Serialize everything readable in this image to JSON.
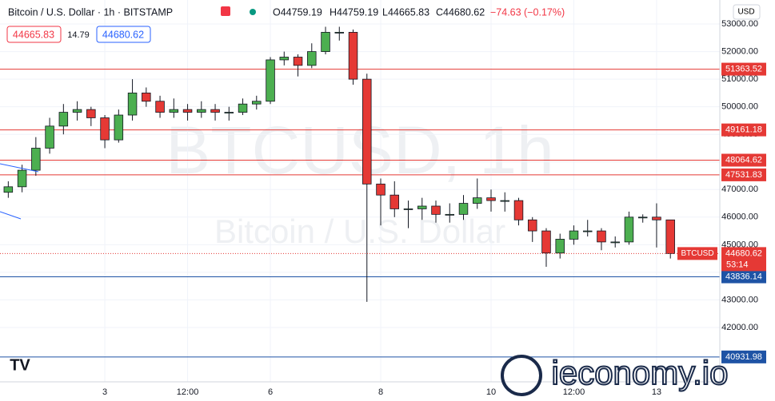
{
  "header": {
    "title": "Bitcoin / U.S. Dollar · 1h · BITSTAMP",
    "open": "O44759.19",
    "high": "H44759.19",
    "low": "L44665.83",
    "close": "C44680.62",
    "change": "−74.63 (−0.17%)",
    "bid": "44665.83",
    "spread": "14.79",
    "ask": "44680.62",
    "currency": "USD",
    "watermark_symbol": "BTCUSD, 1h",
    "watermark_name": "Bitcoin / U.S. Dollar",
    "brand": "ieconomy.io"
  },
  "chart_data": {
    "type": "candlestick",
    "up_color": "#4caf50",
    "down_color": "#e53935",
    "x": [
      -42,
      -36,
      -30,
      -24,
      -18,
      -12,
      -6,
      0,
      6,
      12,
      18,
      24,
      30,
      36,
      42,
      48,
      54,
      60,
      66,
      72,
      78,
      84,
      90,
      96,
      102,
      108,
      114,
      120,
      126,
      132,
      138,
      144,
      150,
      156,
      162,
      168,
      174,
      180,
      186,
      192,
      198,
      204,
      210,
      216,
      222,
      228,
      234,
      240,
      246
    ],
    "open": [
      46900,
      47100,
      47700,
      48500,
      49300,
      49800,
      49900,
      49600,
      48800,
      49700,
      50500,
      50200,
      49800,
      49900,
      49800,
      49900,
      49800,
      49800,
      50100,
      50200,
      51700,
      51800,
      51500,
      52000,
      52700,
      52700,
      51000,
      47200,
      46800,
      46300,
      46300,
      46400,
      46100,
      46100,
      46500,
      46700,
      46600,
      46600,
      45900,
      45500,
      44700,
      45200,
      45500,
      45500,
      45100,
      45100,
      46000,
      46000,
      45900
    ],
    "high": [
      47300,
      47900,
      48900,
      49600,
      50100,
      50200,
      50000,
      49700,
      49900,
      51000,
      50700,
      50400,
      50300,
      50100,
      50200,
      50100,
      50000,
      50300,
      50400,
      51800,
      52000,
      51900,
      52300,
      52900,
      52900,
      52800,
      51200,
      47400,
      47300,
      46600,
      46700,
      46600,
      46500,
      46800,
      47400,
      47000,
      46900,
      46700,
      46000,
      45600,
      45400,
      45700,
      45900,
      45600,
      45300,
      46200,
      46100,
      46500,
      45900
    ],
    "low": [
      46700,
      46900,
      47500,
      48300,
      49000,
      49500,
      49300,
      48500,
      48700,
      49500,
      50000,
      49600,
      49600,
      49500,
      49600,
      49500,
      49500,
      49700,
      49900,
      50100,
      51500,
      51100,
      51400,
      51900,
      52400,
      50800,
      42930,
      45700,
      46000,
      45600,
      45900,
      45800,
      45800,
      45900,
      46300,
      46200,
      46200,
      45700,
      45100,
      44200,
      44500,
      45000,
      45300,
      44800,
      44900,
      45000,
      45800,
      44900,
      44500
    ],
    "close": [
      47100,
      47700,
      48500,
      49300,
      49800,
      49900,
      49600,
      48800,
      49700,
      50500,
      50200,
      49800,
      49900,
      49800,
      49900,
      49800,
      49800,
      50100,
      50200,
      51700,
      51800,
      51500,
      52000,
      52700,
      52700,
      51000,
      47200,
      46800,
      46300,
      46300,
      46400,
      46100,
      46100,
      46500,
      46700,
      46600,
      46600,
      45900,
      45500,
      44700,
      45200,
      45500,
      45500,
      45100,
      45100,
      46000,
      46000,
      45900,
      44680
    ],
    "xlim": [
      -45.6,
      267.5
    ],
    "xticks": [
      {
        "value": 0,
        "label": "3"
      },
      {
        "value": 36,
        "label": "12:00"
      },
      {
        "value": 72,
        "label": "6"
      },
      {
        "value": 120,
        "label": "8"
      },
      {
        "value": 168,
        "label": "10"
      },
      {
        "value": 204,
        "label": "12:00"
      },
      {
        "value": 240,
        "label": "13"
      }
    ],
    "ylim": [
      40030,
      53870
    ],
    "yticks": [
      {
        "value": 42000,
        "label": "42000.00"
      },
      {
        "value": 43000,
        "label": "43000.00"
      },
      {
        "value": 44000,
        "label": "44000.00"
      },
      {
        "value": 45000,
        "label": "45000.00"
      },
      {
        "value": 46000,
        "label": "46000.00"
      },
      {
        "value": 47000,
        "label": "47000.00"
      },
      {
        "value": 48000,
        "label": "48000.00"
      },
      {
        "value": 49000,
        "label": "49000.00"
      },
      {
        "value": 50000,
        "label": "50000.00"
      },
      {
        "value": 51000,
        "label": "51000.00"
      },
      {
        "value": 52000,
        "label": "52000.00"
      },
      {
        "value": 53000,
        "label": "53000.00"
      }
    ],
    "levels": [
      {
        "value": 51363.52,
        "color": "#e53935"
      },
      {
        "value": 49161.18,
        "color": "#e53935"
      },
      {
        "value": 48064.62,
        "color": "#e53935"
      },
      {
        "value": 47531.83,
        "color": "#e53935"
      },
      {
        "value": 43836.14,
        "color": "#1e53a5"
      },
      {
        "value": 40931.98,
        "color": "#1e53a5"
      }
    ],
    "last_price": {
      "value": 44680.62,
      "symbol": "BTCUSD",
      "countdown": "53:14",
      "color": "#e53935"
    }
  }
}
